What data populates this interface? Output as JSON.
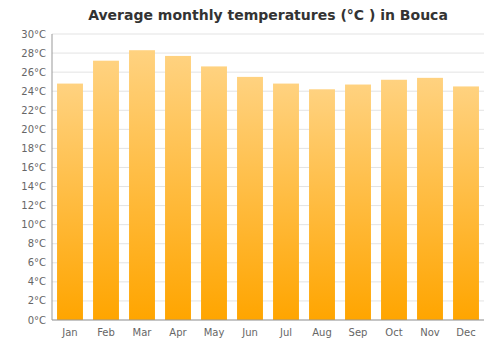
{
  "chart_data": {
    "type": "bar",
    "title": "Average monthly temperatures (°C ) in Bouca",
    "categories": [
      "Jan",
      "Feb",
      "Mar",
      "Apr",
      "May",
      "Jun",
      "Jul",
      "Aug",
      "Sep",
      "Oct",
      "Nov",
      "Dec"
    ],
    "values": [
      24.8,
      27.2,
      28.3,
      27.7,
      26.6,
      25.5,
      24.8,
      24.2,
      24.7,
      25.2,
      25.4,
      24.5
    ],
    "color": "#FFA500",
    "ylim": [
      0,
      30
    ],
    "yticks": [
      {
        "value": 0,
        "label": "0°C"
      },
      {
        "value": 2,
        "label": "2°C"
      },
      {
        "value": 4,
        "label": "4°C"
      },
      {
        "value": 6,
        "label": "6°C"
      },
      {
        "value": 8,
        "label": "8°C"
      },
      {
        "value": 10,
        "label": "10°C"
      },
      {
        "value": 12,
        "label": "12°C"
      },
      {
        "value": 14,
        "label": "14°C"
      },
      {
        "value": 16,
        "label": "16°C"
      },
      {
        "value": 18,
        "label": "18°C"
      },
      {
        "value": 20,
        "label": "20°C"
      },
      {
        "value": 22,
        "label": "22°C"
      },
      {
        "value": 24,
        "label": "24°C"
      },
      {
        "value": 26,
        "label": "26°C"
      },
      {
        "value": 28,
        "label": "28°C"
      },
      {
        "value": 30,
        "label": "30°C"
      }
    ],
    "grid": true
  }
}
